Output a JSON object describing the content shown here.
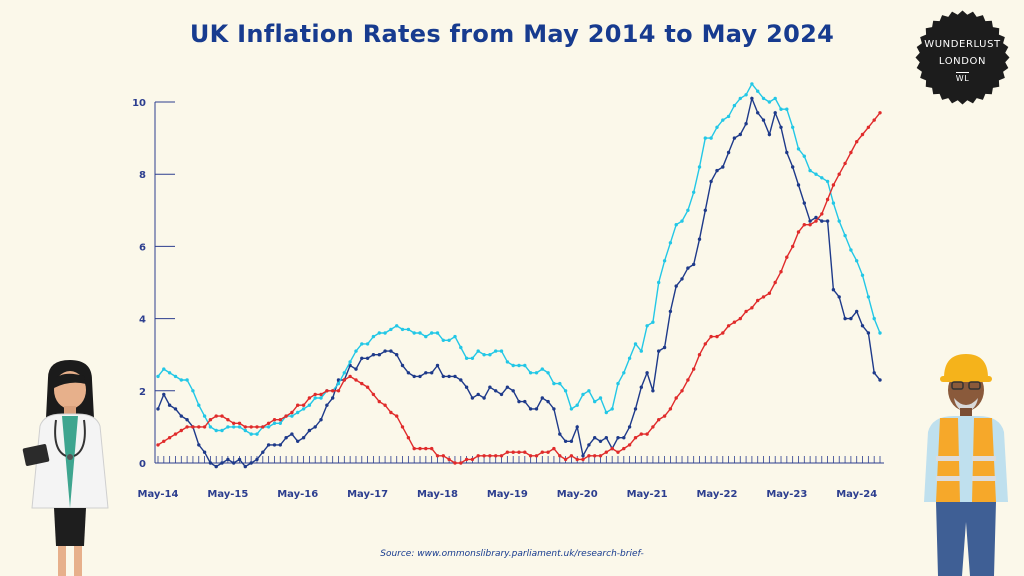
{
  "title": "UK Inflation Rates from May 2014 to May 2024",
  "source": "Source: www.ommonslibrary.parliament.uk/research-brief-",
  "badge": {
    "line1": "WUNDERLUST",
    "line2": "LONDON",
    "line3": "WL"
  },
  "colors": {
    "background": "#fbf8ea",
    "title": "#173b8f",
    "series_dark": "#1e3a8a",
    "series_cyan": "#22c7e6",
    "series_red": "#e02b2b"
  },
  "chart_data": {
    "type": "line",
    "x_start": "May-14",
    "x_tick_labels": [
      "May-14",
      "May-15",
      "May-16",
      "May-17",
      "May-18",
      "May-19",
      "May-20",
      "May-21",
      "May-22",
      "May-23",
      "May-24"
    ],
    "y_tick_labels": [
      "0",
      "2",
      "4",
      "6",
      "8",
      "10"
    ],
    "ylim": [
      0,
      10
    ],
    "grid": false,
    "legend": "none",
    "series": [
      {
        "color": "#1e3a8a",
        "values": [
          1.5,
          1.9,
          1.6,
          1.5,
          1.3,
          1.2,
          1.0,
          0.5,
          0.3,
          0.0,
          -0.1,
          0.0,
          0.1,
          0.0,
          0.1,
          -0.1,
          0.0,
          0.1,
          0.3,
          0.5,
          0.5,
          0.5,
          0.7,
          0.8,
          0.6,
          0.7,
          0.9,
          1.0,
          1.2,
          1.6,
          1.8,
          2.3,
          2.3,
          2.7,
          2.6,
          2.9,
          2.9,
          3.0,
          3.0,
          3.1,
          3.1,
          3.0,
          2.7,
          2.5,
          2.4,
          2.4,
          2.5,
          2.5,
          2.7,
          2.4,
          2.4,
          2.4,
          2.3,
          2.1,
          1.8,
          1.9,
          1.8,
          2.1,
          2.0,
          1.9,
          2.1,
          2.0,
          1.7,
          1.7,
          1.5,
          1.5,
          1.8,
          1.7,
          1.5,
          0.8,
          0.6,
          0.6,
          1.0,
          0.2,
          0.5,
          0.7,
          0.6,
          0.7,
          0.4,
          0.7,
          0.7,
          1.0,
          1.5,
          2.1,
          2.5,
          2.0,
          3.1,
          3.2,
          4.2,
          4.9,
          5.1,
          5.4,
          5.5,
          6.2,
          7.0,
          7.8,
          8.1,
          8.2,
          8.6,
          9.0,
          9.1,
          9.4,
          10.1,
          9.7,
          9.5,
          9.1,
          9.7,
          9.3,
          8.6,
          8.2,
          7.7,
          7.2,
          6.7,
          6.8,
          6.7,
          6.7,
          4.8,
          4.6,
          4.0,
          4.0,
          4.2,
          3.8,
          3.6,
          2.5,
          2.3
        ]
      },
      {
        "color": "#22c7e6",
        "values": [
          2.4,
          2.6,
          2.5,
          2.4,
          2.3,
          2.3,
          2.0,
          1.6,
          1.3,
          1.0,
          0.9,
          0.9,
          1.0,
          1.0,
          1.0,
          0.9,
          0.8,
          0.8,
          1.0,
          1.0,
          1.1,
          1.1,
          1.3,
          1.3,
          1.4,
          1.5,
          1.6,
          1.8,
          1.8,
          2.0,
          2.0,
          2.2,
          2.5,
          2.8,
          3.1,
          3.3,
          3.3,
          3.5,
          3.6,
          3.6,
          3.7,
          3.8,
          3.7,
          3.7,
          3.6,
          3.6,
          3.5,
          3.6,
          3.6,
          3.4,
          3.4,
          3.5,
          3.2,
          2.9,
          2.9,
          3.1,
          3.0,
          3.0,
          3.1,
          3.1,
          2.8,
          2.7,
          2.7,
          2.7,
          2.5,
          2.5,
          2.6,
          2.5,
          2.2,
          2.2,
          2.0,
          1.5,
          1.6,
          1.9,
          2.0,
          1.7,
          1.8,
          1.4,
          1.5,
          2.2,
          2.5,
          2.9,
          3.3,
          3.1,
          3.8,
          3.9,
          5.0,
          5.6,
          6.1,
          6.6,
          6.7,
          7.0,
          7.5,
          8.2,
          9.0,
          9.0,
          9.3,
          9.5,
          9.6,
          9.9,
          10.1,
          10.2,
          10.5,
          10.3,
          10.1,
          10.0,
          10.1,
          9.8,
          9.8,
          9.3,
          8.7,
          8.5,
          8.1,
          8.0,
          7.9,
          7.8,
          7.2,
          6.7,
          6.3,
          5.9,
          5.6,
          5.2,
          4.6,
          4.0,
          3.6
        ]
      },
      {
        "color": "#e02b2b",
        "values": [
          0.5,
          0.6,
          0.7,
          0.8,
          0.9,
          1.0,
          1.0,
          1.0,
          1.0,
          1.2,
          1.3,
          1.3,
          1.2,
          1.1,
          1.1,
          1.0,
          1.0,
          1.0,
          1.0,
          1.1,
          1.2,
          1.2,
          1.3,
          1.4,
          1.6,
          1.6,
          1.8,
          1.9,
          1.9,
          2.0,
          2.0,
          2.0,
          2.3,
          2.4,
          2.3,
          2.2,
          2.1,
          1.9,
          1.7,
          1.6,
          1.4,
          1.3,
          1.0,
          0.7,
          0.4,
          0.4,
          0.4,
          0.4,
          0.2,
          0.2,
          0.1,
          0.0,
          0.0,
          0.1,
          0.1,
          0.2,
          0.2,
          0.2,
          0.2,
          0.2,
          0.3,
          0.3,
          0.3,
          0.3,
          0.2,
          0.2,
          0.3,
          0.3,
          0.4,
          0.2,
          0.1,
          0.2,
          0.1,
          0.1,
          0.2,
          0.2,
          0.2,
          0.3,
          0.4,
          0.3,
          0.4,
          0.5,
          0.7,
          0.8,
          0.8,
          1.0,
          1.2,
          1.3,
          1.5,
          1.8,
          2.0,
          2.3,
          2.6,
          3.0,
          3.3,
          3.5,
          3.5,
          3.6,
          3.8,
          3.9,
          4.0,
          4.2,
          4.3,
          4.5,
          4.6,
          4.7,
          5.0,
          5.3,
          5.7,
          6.0,
          6.4,
          6.6,
          6.6,
          6.7,
          6.9,
          7.3,
          7.7,
          8.0,
          8.3,
          8.6,
          8.9,
          9.1,
          9.3,
          9.5,
          9.7
        ]
      }
    ]
  }
}
